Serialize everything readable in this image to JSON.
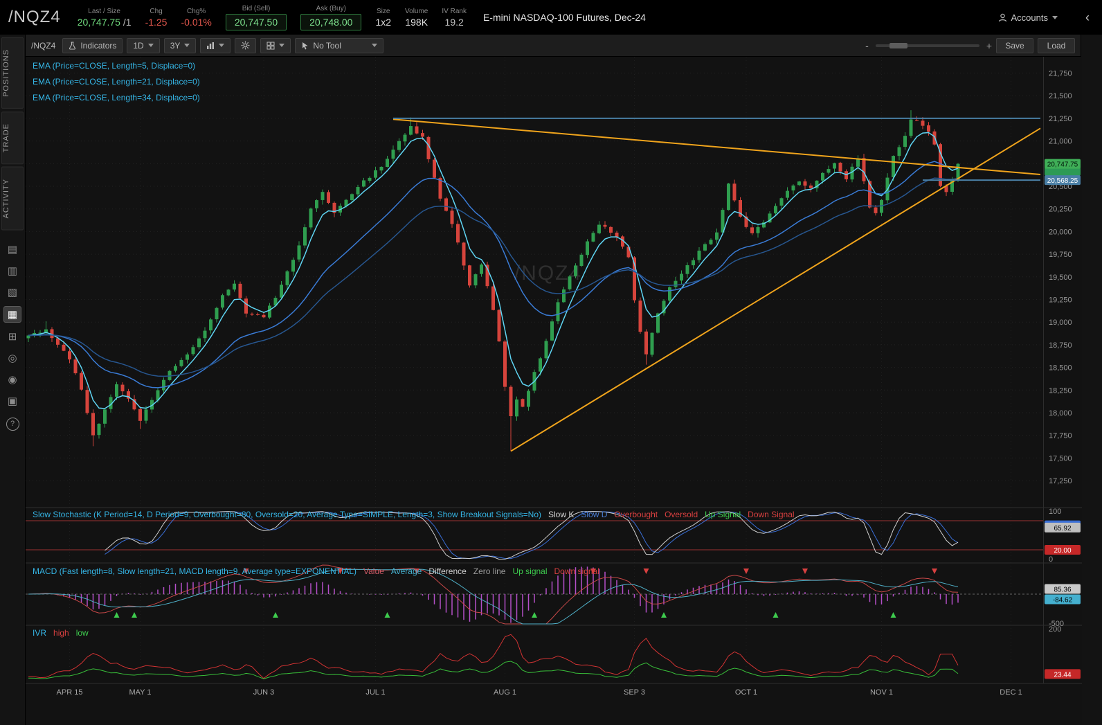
{
  "header": {
    "symbol": "/NQZ4",
    "last_size_label": "Last / Size",
    "last_value": "20,747.75",
    "size_suffix": "/1",
    "chg_label": "Chg",
    "chg_value": "-1.25",
    "chgp_label": "Chg%",
    "chgp_value": "-0.01%",
    "bid_label": "Bid (Sell)",
    "bid_value": "20,747.50",
    "ask_label": "Ask (Buy)",
    "ask_value": "20,748.00",
    "size_label": "Size",
    "size_value": "1x2",
    "volume_label": "Volume",
    "volume_value": "198K",
    "ivr_label": "IV Rank",
    "ivr_value": "19.2",
    "description": "E-mini NASDAQ-100 Futures, Dec-24",
    "accounts_label": "Accounts",
    "collapse_glyph": "‹"
  },
  "sidebar": {
    "tabs": [
      "POSITIONS",
      "TRADE",
      "ACTIVITY"
    ],
    "icons": [
      {
        "name": "quotes-icon",
        "glyph": "▤"
      },
      {
        "name": "watchlist-icon",
        "glyph": "▥"
      },
      {
        "name": "orders-icon",
        "glyph": "▧"
      },
      {
        "name": "charts-icon",
        "glyph": "▦"
      },
      {
        "name": "apps-icon",
        "glyph": "⊞"
      },
      {
        "name": "history-icon",
        "glyph": "◎"
      },
      {
        "name": "contacts-icon",
        "glyph": "◉"
      },
      {
        "name": "archive-icon",
        "glyph": "▣"
      },
      {
        "name": "help-icon",
        "glyph": "?"
      }
    ]
  },
  "toolbar": {
    "symbol": "/NQZ4",
    "indicators_label": "Indicators",
    "timeframe_value": "1D",
    "range_value": "3Y",
    "tool_label": "No Tool",
    "zoom_minus": "-",
    "zoom_plus": "+",
    "save_label": "Save",
    "load_label": "Load"
  },
  "studies": {
    "ema_labels": [
      "EMA (Price=CLOSE, Length=5, Displace=0)",
      "EMA (Price=CLOSE, Length=21, Displace=0)",
      "EMA (Price=CLOSE, Length=34, Displace=0)"
    ],
    "stoch": {
      "title": "Slow Stochastic (K Period=14, D Period=9, Overbought=80, Oversold=20, Average Type=SIMPLE, Length=3, Show Breakout Signals=No)",
      "legend": [
        {
          "text": "Slow K",
          "color": "#d6d6d6"
        },
        {
          "text": "Slow D",
          "color": "#4a7fd6"
        },
        {
          "text": "Overbought",
          "color": "#d84040"
        },
        {
          "text": "Oversold",
          "color": "#d84040"
        },
        {
          "text": "Up Signal",
          "color": "#3ecb4e"
        },
        {
          "text": "Down Signal",
          "color": "#d84040"
        }
      ],
      "axis_top": "100",
      "axis_bottom": "0",
      "overbought": 80,
      "oversold": 20,
      "bubbles": [
        {
          "text": "70.48",
          "value": 70.48,
          "bg": "#3b6fd4",
          "fg": "#ffffff"
        },
        {
          "text": "65.92",
          "value": 65.92,
          "bg": "#bfbfbf",
          "fg": "#000000"
        },
        {
          "text": "20.00",
          "value": 20,
          "bg": "#c62828",
          "fg": "#ffffff"
        }
      ]
    },
    "macd": {
      "title": "MACD (Fast length=8, Slow length=21, MACD length=9, Average type=EXPONENTIAL)",
      "legend": [
        {
          "text": "Value",
          "color": "#d05c68"
        },
        {
          "text": "Average",
          "color": "#45b0cf"
        },
        {
          "text": "Difference",
          "color": "#cfcfcf"
        },
        {
          "text": "Zero line",
          "color": "#9a9a9a"
        },
        {
          "text": "Up signal",
          "color": "#3ecb4e"
        },
        {
          "text": "Down signal",
          "color": "#d84040"
        }
      ],
      "axis_bottom": "-500",
      "axis_bottom_value": -500,
      "bubbles": [
        {
          "text": "-84.62",
          "value": -84.62,
          "bg": "#45b0cf",
          "fg": "#000000"
        },
        {
          "text": "85.36",
          "value": 85.36,
          "bg": "#c9c9c9",
          "fg": "#000000"
        }
      ]
    },
    "ivr": {
      "title": "IVR",
      "legend": [
        {
          "text": "high",
          "color": "#d84040"
        },
        {
          "text": "low",
          "color": "#3ecb4e"
        }
      ],
      "axis_top": "200",
      "axis_top_value": 200,
      "bubbles": [
        {
          "text": "23.44",
          "value": 23.44,
          "bg": "#c62828",
          "fg": "#ffffff"
        }
      ]
    }
  },
  "chart_data": {
    "type": "candlestick",
    "symbol": "/NQZ4",
    "watermark": "/NQZ4",
    "y_axis": {
      "min": 17250,
      "max": 21750,
      "step": 250
    },
    "x_ticks": [
      {
        "label": "APR 15",
        "d": 7
      },
      {
        "label": "MAY 1",
        "d": 19
      },
      {
        "label": "JUN 3",
        "d": 40
      },
      {
        "label": "JUL 1",
        "d": 59
      },
      {
        "label": "AUG 1",
        "d": 81
      },
      {
        "label": "SEP 3",
        "d": 103
      },
      {
        "label": "OCT 1",
        "d": 122
      },
      {
        "label": "NOV 1",
        "d": 145
      },
      {
        "label": "DEC 1",
        "d": 167
      }
    ],
    "candles": {
      "days": 159,
      "last_close": 20747.75,
      "close_anchors": [
        [
          0,
          18850
        ],
        [
          3,
          18920
        ],
        [
          5,
          18750
        ],
        [
          7,
          18600
        ],
        [
          9,
          18250
        ],
        [
          11,
          17750
        ],
        [
          13,
          18020
        ],
        [
          15,
          18300
        ],
        [
          17,
          18150
        ],
        [
          19,
          17900
        ],
        [
          21,
          18150
        ],
        [
          24,
          18450
        ],
        [
          27,
          18650
        ],
        [
          30,
          18900
        ],
        [
          33,
          19300
        ],
        [
          35,
          19420
        ],
        [
          37,
          19100
        ],
        [
          40,
          19050
        ],
        [
          43,
          19400
        ],
        [
          46,
          19850
        ],
        [
          48,
          20250
        ],
        [
          50,
          20430
        ],
        [
          52,
          20200
        ],
        [
          54,
          20350
        ],
        [
          56,
          20500
        ],
        [
          59,
          20660
        ],
        [
          61,
          20800
        ],
        [
          63,
          21000
        ],
        [
          65,
          21150
        ],
        [
          67,
          21050
        ],
        [
          68,
          20800
        ],
        [
          70,
          20360
        ],
        [
          72,
          20100
        ],
        [
          74,
          19640
        ],
        [
          75,
          19400
        ],
        [
          77,
          19640
        ],
        [
          78,
          19400
        ],
        [
          79,
          19150
        ],
        [
          80,
          18780
        ],
        [
          81,
          18300
        ],
        [
          82,
          17950
        ],
        [
          83,
          18150
        ],
        [
          84,
          18050
        ],
        [
          86,
          18450
        ],
        [
          88,
          18780
        ],
        [
          90,
          19230
        ],
        [
          92,
          19520
        ],
        [
          94,
          19750
        ],
        [
          95,
          19900
        ],
        [
          97,
          20080
        ],
        [
          99,
          20000
        ],
        [
          101,
          19850
        ],
        [
          102,
          19700
        ],
        [
          103,
          19230
        ],
        [
          104,
          18900
        ],
        [
          105,
          18650
        ],
        [
          107,
          19080
        ],
        [
          109,
          19380
        ],
        [
          111,
          19550
        ],
        [
          113,
          19700
        ],
        [
          115,
          19850
        ],
        [
          117,
          20000
        ],
        [
          118,
          20250
        ],
        [
          119,
          20520
        ],
        [
          121,
          20150
        ],
        [
          122,
          20060
        ],
        [
          123,
          19980
        ],
        [
          125,
          20100
        ],
        [
          127,
          20280
        ],
        [
          129,
          20440
        ],
        [
          131,
          20560
        ],
        [
          133,
          20480
        ],
        [
          135,
          20660
        ],
        [
          137,
          20740
        ],
        [
          139,
          20590
        ],
        [
          141,
          20820
        ],
        [
          143,
          20280
        ],
        [
          144,
          20200
        ],
        [
          145,
          20360
        ],
        [
          147,
          20820
        ],
        [
          149,
          21050
        ],
        [
          150,
          21250
        ],
        [
          152,
          21170
        ],
        [
          153,
          21100
        ],
        [
          154,
          20970
        ],
        [
          155,
          20520
        ],
        [
          156,
          20440
        ],
        [
          157,
          20590
        ],
        [
          158,
          20747.75
        ]
      ],
      "wick_highs": [
        [
          3,
          19010
        ],
        [
          65,
          21260
        ],
        [
          150,
          21340
        ]
      ],
      "wick_lows": [
        [
          11,
          17630
        ],
        [
          19,
          17820
        ],
        [
          82,
          17575
        ],
        [
          105,
          18530
        ]
      ]
    },
    "emas": [
      5,
      21,
      34
    ],
    "ema_colors": [
      "#5fd4f2",
      "#3a7bd5",
      "#27568f"
    ],
    "candle_up_color": "#2f9e4f",
    "candle_down_color": "#d6443c",
    "drawings": {
      "trendlines": [
        {
          "from_d": 62,
          "from_p": 21240,
          "to_d": 172,
          "to_p": 20630,
          "color": "#f0a41c"
        },
        {
          "from_d": 82,
          "from_p": 17575,
          "to_d": 172,
          "to_p": 21140,
          "color": "#f0a41c"
        }
      ],
      "hlines": [
        {
          "price": 21250,
          "from_d": 62,
          "to_d": 172,
          "color": "#4a7fa5"
        },
        {
          "price": 20568.25,
          "from_d": 152,
          "to_d": 172,
          "color": "#4a7fa5"
        }
      ]
    },
    "price_bubbles": [
      {
        "text": "20,747.75",
        "price": 20747.75,
        "bg": "#3fae57",
        "fg": "#00140a"
      },
      {
        "text": "20,568.25",
        "price": 20568.25,
        "bg": "#4a7fa5",
        "fg": "#ffffff"
      }
    ],
    "signals": {
      "up_d": [
        15,
        18,
        42,
        61,
        86,
        108,
        127,
        147
      ],
      "down_d": [
        37,
        53,
        66,
        96,
        105,
        122,
        132,
        154
      ]
    }
  }
}
